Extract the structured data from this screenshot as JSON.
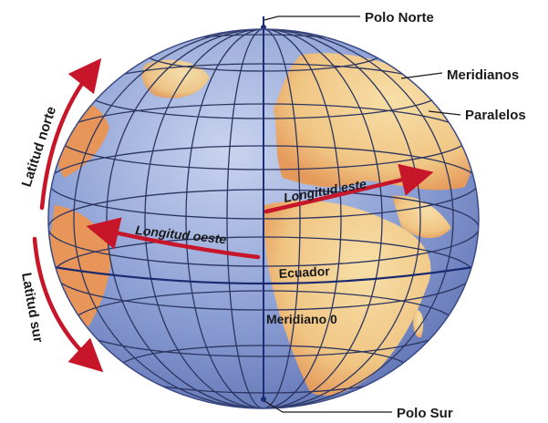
{
  "labels": {
    "north_pole": "Polo Norte",
    "meridians": "Meridianos",
    "parallels": "Paralelos",
    "south_pole": "Polo Sur",
    "north_latitude": "Latitud norte",
    "south_latitude": "Latitud sur",
    "east_longitude": "Longitud este",
    "west_longitude": "Longitud oeste",
    "equator": "Ecuador",
    "prime_meridian": "Meridiano 0"
  },
  "colors": {
    "ocean": "#8fa2d6",
    "land": "#f3cf8f",
    "land_shadow": "#e8955a",
    "grid": "#2c3560",
    "arrow": "#c7152a"
  }
}
